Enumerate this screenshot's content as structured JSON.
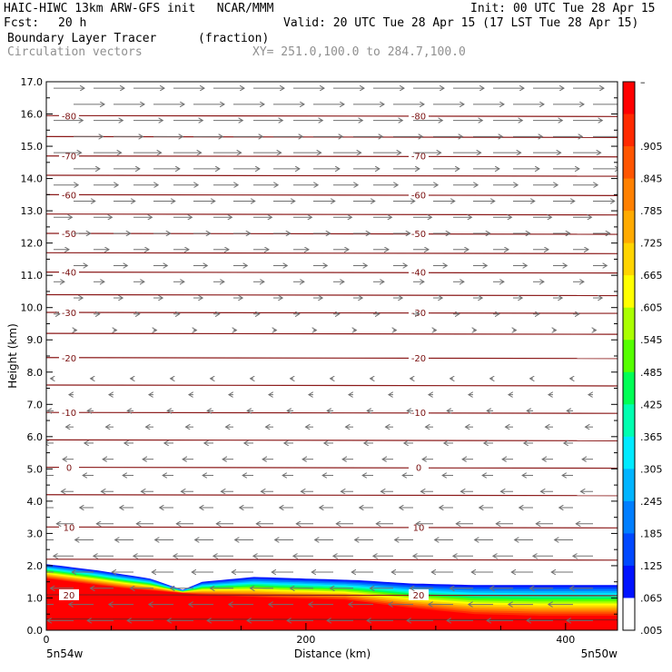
{
  "header": {
    "title_left": "HAIC-HIWC 13km ARW-GFS init   NCAR/MMM",
    "init": "Init: 00 UTC Tue 28 Apr 15",
    "fcst_label": "Fcst:",
    "fcst_value": "20 h",
    "valid": "Valid: 20 UTC Tue 28 Apr 15 (17 LST Tue 28 Apr 15)",
    "field1": "Boundary Layer Tracer",
    "field1_units": "(fraction)",
    "field2": "Circulation vectors",
    "xy": "XY= 251.0,100.0 to 284.7,100.0"
  },
  "chart_data": {
    "type": "heatmap",
    "xlabel": "Distance (km)",
    "ylabel": "Height (km)",
    "x_ticks": [
      0,
      200,
      400
    ],
    "x_range": [
      0,
      440
    ],
    "ylim": [
      0,
      17
    ],
    "y_ticks": [
      "0.0",
      "1.0",
      "2.0",
      "3.0",
      "4.0",
      "5.0",
      "6.0",
      "7.0",
      "8.0",
      "9.0",
      "10.0",
      "11.0",
      "12.0",
      "13.0",
      "14.0",
      "15.0",
      "16.0",
      "17.0"
    ],
    "x_endpoint_left": "5n54w",
    "x_endpoint_right": "5n50w",
    "colorbar": {
      "labels": [
        "–",
        ".905",
        ".845",
        ".785",
        ".725",
        ".665",
        ".605",
        ".545",
        ".485",
        ".425",
        ".365",
        ".305",
        ".245",
        ".185",
        ".125",
        ".065",
        ".005"
      ],
      "colors": [
        "#ff0000",
        "#ff2a00",
        "#ff5500",
        "#ff8000",
        "#ffaa00",
        "#ffd400",
        "#ffff00",
        "#aaff00",
        "#55ff00",
        "#00ff55",
        "#00ffb0",
        "#00eaff",
        "#00b4ff",
        "#007eff",
        "#0048ff",
        "#0012ff"
      ]
    },
    "tracer_top_km": [
      {
        "x": 0,
        "top": 2.05
      },
      {
        "x": 40,
        "top": 1.85
      },
      {
        "x": 80,
        "top": 1.6
      },
      {
        "x": 105,
        "top": 1.25
      },
      {
        "x": 120,
        "top": 1.5
      },
      {
        "x": 160,
        "top": 1.65
      },
      {
        "x": 200,
        "top": 1.6
      },
      {
        "x": 240,
        "top": 1.55
      },
      {
        "x": 280,
        "top": 1.45
      },
      {
        "x": 330,
        "top": 1.4
      },
      {
        "x": 380,
        "top": 1.4
      },
      {
        "x": 440,
        "top": 1.4
      }
    ],
    "red_top_km": [
      {
        "x": 0,
        "top": 1.6
      },
      {
        "x": 60,
        "top": 1.3
      },
      {
        "x": 120,
        "top": 1.1
      },
      {
        "x": 180,
        "top": 1.0
      },
      {
        "x": 230,
        "top": 0.95
      },
      {
        "x": 280,
        "top": 0.7
      },
      {
        "x": 330,
        "top": 0.5
      },
      {
        "x": 380,
        "top": 0.45
      },
      {
        "x": 440,
        "top": 0.45
      }
    ],
    "temperature_contours": [
      {
        "label": "-80",
        "y": 15.95,
        "labeled": true
      },
      {
        "label": "",
        "y": 15.3,
        "labeled": false
      },
      {
        "label": "-70",
        "y": 14.7,
        "labeled": true
      },
      {
        "label": "",
        "y": 14.1,
        "labeled": false
      },
      {
        "label": "-60",
        "y": 13.5,
        "labeled": true
      },
      {
        "label": "",
        "y": 12.9,
        "labeled": false
      },
      {
        "label": "-50",
        "y": 12.3,
        "labeled": true
      },
      {
        "label": "",
        "y": 11.7,
        "labeled": false
      },
      {
        "label": "-40",
        "y": 11.1,
        "labeled": true
      },
      {
        "label": "",
        "y": 10.4,
        "labeled": false
      },
      {
        "label": "-30",
        "y": 9.85,
        "labeled": true
      },
      {
        "label": "",
        "y": 9.2,
        "labeled": false
      },
      {
        "label": "-20",
        "y": 8.45,
        "labeled": true
      },
      {
        "label": "",
        "y": 7.6,
        "labeled": false
      },
      {
        "label": "-10",
        "y": 6.75,
        "labeled": true
      },
      {
        "label": "",
        "y": 5.9,
        "labeled": false
      },
      {
        "label": "0",
        "y": 5.05,
        "labeled": true
      },
      {
        "label": "",
        "y": 4.2,
        "labeled": false
      },
      {
        "label": "10",
        "y": 3.2,
        "labeled": true
      },
      {
        "label": "",
        "y": 2.2,
        "labeled": false
      },
      {
        "label": "20",
        "y": 1.1,
        "labeled": true
      },
      {
        "label": "",
        "y": 0.35,
        "labeled": false
      }
    ],
    "wind_rows": [
      {
        "y": 16.8,
        "u": 1.0
      },
      {
        "y": 16.3,
        "u": 1.0
      },
      {
        "y": 15.8,
        "u": 0.95
      },
      {
        "y": 15.3,
        "u": 0.95
      },
      {
        "y": 14.8,
        "u": 0.9
      },
      {
        "y": 14.3,
        "u": 0.85
      },
      {
        "y": 13.8,
        "u": 0.8
      },
      {
        "y": 13.3,
        "u": 0.7
      },
      {
        "y": 12.8,
        "u": 0.6
      },
      {
        "y": 12.3,
        "u": 0.55
      },
      {
        "y": 11.8,
        "u": 0.5
      },
      {
        "y": 11.3,
        "u": 0.45
      },
      {
        "y": 10.8,
        "u": 0.35
      },
      {
        "y": 10.3,
        "u": 0.3
      },
      {
        "y": 9.8,
        "u": 0.2
      },
      {
        "y": 9.3,
        "u": 0.1
      },
      {
        "y": 8.8,
        "u": 0.05
      },
      {
        "y": 8.3,
        "u": -0.05
      },
      {
        "y": 7.8,
        "u": -0.1
      },
      {
        "y": 7.3,
        "u": -0.15
      },
      {
        "y": 6.8,
        "u": -0.2
      },
      {
        "y": 6.3,
        "u": -0.25
      },
      {
        "y": 5.8,
        "u": -0.3
      },
      {
        "y": 5.3,
        "u": -0.35
      },
      {
        "y": 4.8,
        "u": -0.35
      },
      {
        "y": 4.3,
        "u": -0.4
      },
      {
        "y": 3.8,
        "u": -0.45
      },
      {
        "y": 3.3,
        "u": -0.55
      },
      {
        "y": 2.8,
        "u": -0.6
      },
      {
        "y": 2.3,
        "u": -0.65
      },
      {
        "y": 1.8,
        "u": -0.7
      },
      {
        "y": 1.3,
        "u": -0.75
      },
      {
        "y": 0.8,
        "u": -0.8
      },
      {
        "y": 0.3,
        "u": -0.85
      }
    ]
  }
}
